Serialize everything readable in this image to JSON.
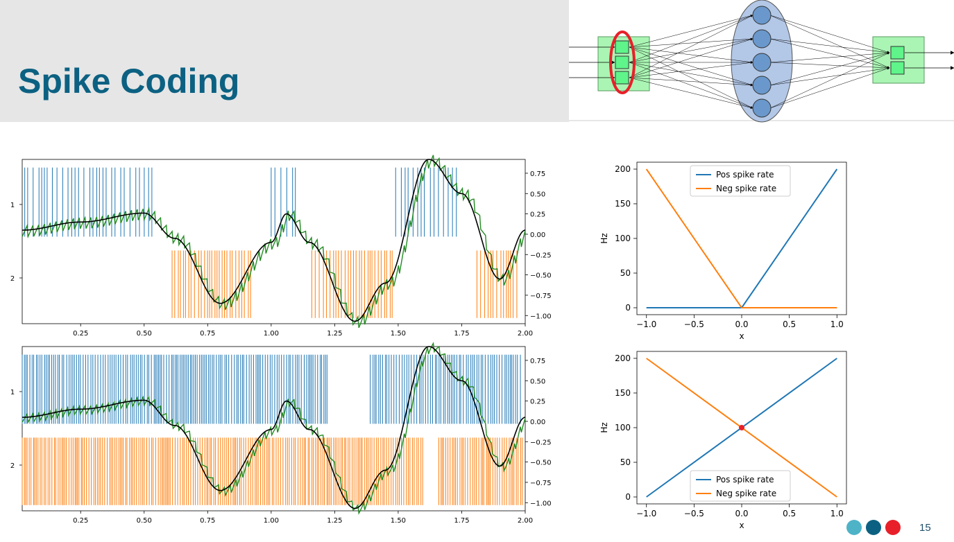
{
  "slide": {
    "title": "Spike Coding",
    "page_number": "15",
    "colors": {
      "title": "#0c6182",
      "header_bg": "#e6e6e6",
      "dot_1": "#4fb3c8",
      "dot_2": "#0c6182",
      "dot_3": "#e8202a"
    }
  },
  "diagram": {
    "input_nodes": 3,
    "hidden_nodes": 5,
    "output_nodes": 2,
    "colors": {
      "input_box": "#aaf5b4",
      "node_square": "#5ff58a",
      "hidden_ellipse": "#b3c7e6",
      "hidden_node": "#6a98cc",
      "highlight": "#e8202a"
    }
  },
  "chart_data": [
    {
      "type": "line",
      "id": "spike-plot-top",
      "x_range": [
        0.02,
        2.0
      ],
      "x_ticks": [
        "0.25",
        "0.50",
        "0.75",
        "1.00",
        "1.25",
        "1.50",
        "1.75",
        "2.00"
      ],
      "x_tick_values": [
        0.25,
        0.5,
        0.75,
        1.0,
        1.25,
        1.5,
        1.75,
        2.0
      ],
      "left_ticks": [
        "1",
        "2"
      ],
      "right_range": [
        -1.1,
        0.92
      ],
      "right_ticks": [
        "0.75",
        "0.50",
        "0.25",
        "0.00",
        "−0.25",
        "−0.50",
        "−0.75",
        "−1.00"
      ],
      "right_tick_values": [
        0.75,
        0.5,
        0.25,
        0,
        -0.25,
        -0.5,
        -0.75,
        -1.0
      ],
      "signal": "sin",
      "series": [
        {
          "role": "pos-spikes",
          "color": "#1f77b4",
          "intervals": [
            [
              0.03,
              0.54
            ],
            [
              1.0,
              1.1
            ],
            [
              1.49,
              1.73
            ]
          ]
        },
        {
          "role": "neg-spikes",
          "color": "#ff7f0e",
          "intervals": [
            [
              0.61,
              0.93
            ],
            [
              1.16,
              1.48
            ],
            [
              1.81,
              1.97
            ]
          ]
        },
        {
          "role": "decoded",
          "color": "#228b22"
        },
        {
          "role": "target",
          "color": "#000000"
        }
      ]
    },
    {
      "type": "line",
      "id": "spike-plot-bottom",
      "x_range": [
        0.02,
        2.0
      ],
      "x_ticks": [
        "0.25",
        "0.50",
        "0.75",
        "1.00",
        "1.25",
        "1.50",
        "1.75",
        "2.00"
      ],
      "x_tick_values": [
        0.25,
        0.5,
        0.75,
        1.0,
        1.25,
        1.5,
        1.75,
        2.0
      ],
      "left_ticks": [
        "1",
        "2"
      ],
      "right_range": [
        -1.1,
        0.92
      ],
      "right_ticks": [
        "0.75",
        "0.50",
        "0.25",
        "0.00",
        "−0.25",
        "−0.50",
        "−0.75",
        "−1.00"
      ],
      "right_tick_values": [
        0.75,
        0.5,
        0.25,
        0,
        -0.25,
        -0.5,
        -0.75,
        -1.0
      ],
      "signal": "sin",
      "series": [
        {
          "role": "pos-spikes",
          "color": "#1f77b4",
          "intervals": [
            [
              0.02,
              1.22
            ],
            [
              1.39,
              1.99
            ]
          ]
        },
        {
          "role": "neg-spikes",
          "color": "#ff7f0e",
          "intervals": [
            [
              0.02,
              1.6
            ],
            [
              1.66,
              1.99
            ]
          ]
        },
        {
          "role": "decoded",
          "color": "#228b22"
        },
        {
          "role": "target",
          "color": "#000000"
        }
      ]
    },
    {
      "type": "line",
      "id": "rate-plot-top",
      "xlabel": "x",
      "ylabel": "Hz",
      "xlim": [
        -1.1,
        1.1
      ],
      "ylim": [
        -10,
        210
      ],
      "x_ticks": [
        "−1.0",
        "−0.5",
        "0.0",
        "0.5",
        "1.0"
      ],
      "x_tick_values": [
        -1.0,
        -0.5,
        0,
        0.5,
        1.0
      ],
      "y_ticks": [
        "0",
        "50",
        "100",
        "150",
        "200"
      ],
      "y_tick_values": [
        0,
        50,
        100,
        150,
        200
      ],
      "legend_position": "top-center",
      "series": [
        {
          "name": "Pos spike rate",
          "color": "#1f77b4",
          "x": [
            -1.0,
            0.0,
            1.0
          ],
          "y": [
            0,
            0,
            200
          ]
        },
        {
          "name": "Neg spike rate",
          "color": "#ff7f0e",
          "x": [
            -1.0,
            0.0,
            1.0
          ],
          "y": [
            200,
            0,
            0
          ]
        }
      ]
    },
    {
      "type": "line",
      "id": "rate-plot-bottom",
      "xlabel": "x",
      "ylabel": "Hz",
      "xlim": [
        -1.1,
        1.1
      ],
      "ylim": [
        -10,
        210
      ],
      "x_ticks": [
        "−1.0",
        "−0.5",
        "0.0",
        "0.5",
        "1.0"
      ],
      "x_tick_values": [
        -1.0,
        -0.5,
        0,
        0.5,
        1.0
      ],
      "y_ticks": [
        "0",
        "50",
        "100",
        "150",
        "200"
      ],
      "y_tick_values": [
        0,
        50,
        100,
        150,
        200
      ],
      "legend_position": "bottom-center",
      "series": [
        {
          "name": "Pos spike rate",
          "color": "#1f77b4",
          "x": [
            -1.0,
            1.0
          ],
          "y": [
            0,
            200
          ]
        },
        {
          "name": "Neg spike rate",
          "color": "#ff7f0e",
          "x": [
            -1.0,
            1.0
          ],
          "y": [
            200,
            0
          ]
        }
      ],
      "annotation_point": {
        "x": 0.0,
        "y": 100,
        "color": "#e8202a"
      }
    }
  ]
}
